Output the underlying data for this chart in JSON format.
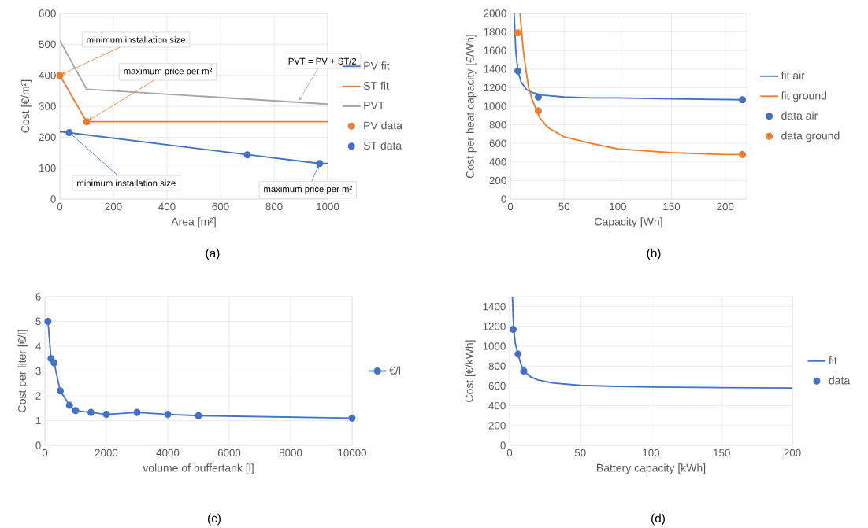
{
  "chart_data": [
    {
      "type": "line",
      "xlabel": "Area [m²]",
      "ylabel": "Cost [€/m²]",
      "xlim": [
        0,
        1000
      ],
      "ylim": [
        0,
        600
      ],
      "xticks": [
        0,
        200,
        400,
        600,
        800,
        1000
      ],
      "yticks": [
        0,
        100,
        200,
        300,
        400,
        500,
        600
      ],
      "grid": true,
      "legend": "right",
      "marker": "circle",
      "series": [
        {
          "name": "PV fit",
          "type": "line",
          "marker": "none",
          "color": "#4472c4",
          "x": [
            0,
            970,
            1000
          ],
          "values": [
            218,
            115,
            115
          ]
        },
        {
          "name": "ST fit",
          "type": "line",
          "marker": "none",
          "color": "#ed7d31",
          "x": [
            0,
            100,
            1000
          ],
          "values": [
            400,
            250,
            250
          ]
        },
        {
          "name": "PVT",
          "type": "line",
          "marker": "none",
          "color": "#a5a5a5",
          "x": [
            0,
            100,
            1000
          ],
          "values": [
            512,
            355,
            307
          ]
        },
        {
          "name": "PV data",
          "type": "scatter",
          "color": "#ed7d31",
          "x": [
            0,
            100
          ],
          "values": [
            400,
            250
          ]
        },
        {
          "name": "ST data",
          "type": "scatter",
          "color": "#4472c4",
          "x": [
            35,
            700,
            970
          ],
          "values": [
            215,
            143,
            115
          ]
        }
      ],
      "annotations": [
        {
          "text": "minimum installation size",
          "x": 0,
          "y": 400
        },
        {
          "text": "maximum price per m²",
          "x": 100,
          "y": 250
        },
        {
          "text": "PVT = PV + ST/2",
          "x": 890,
          "y": 313
        },
        {
          "text": "minimum installation size",
          "x": 35,
          "y": 215
        },
        {
          "text": "maximum price per m²",
          "x": 970,
          "y": 115
        },
        "(a)"
      ]
    },
    {
      "type": "line",
      "xlabel": "Capacity [Wh]",
      "ylabel": "Cost per heat capacity [€/Wh]",
      "xlim": [
        0,
        220
      ],
      "ylim": [
        0,
        2000
      ],
      "xticks": [
        0,
        50,
        100,
        150,
        200
      ],
      "yticks": [
        0,
        200,
        400,
        600,
        800,
        1000,
        1200,
        1400,
        1600,
        1800,
        2000
      ],
      "grid": true,
      "legend": "right",
      "marker": "circle",
      "series": [
        {
          "name": "fit air",
          "type": "line",
          "marker": "none",
          "color": "#4472c4",
          "x": [
            3.5,
            5,
            7,
            10,
            15,
            20,
            30,
            50,
            75,
            100,
            150,
            217
          ],
          "values": [
            2000,
            1600,
            1380,
            1260,
            1180,
            1150,
            1120,
            1100,
            1090,
            1090,
            1080,
            1070
          ]
        },
        {
          "name": "fit ground",
          "type": "line",
          "marker": "none",
          "color": "#ed7d31",
          "x": [
            9,
            12,
            15,
            17,
            20,
            27,
            35,
            50,
            75,
            100,
            125,
            150,
            200,
            217
          ],
          "values": [
            2000,
            1600,
            1350,
            1200,
            1080,
            880,
            770,
            670,
            600,
            540,
            520,
            500,
            480,
            480
          ]
        },
        {
          "name": "data air",
          "type": "scatter",
          "color": "#4472c4",
          "x": [
            7,
            26,
            216
          ],
          "values": [
            1380,
            1100,
            1070
          ]
        },
        {
          "name": "data ground",
          "type": "scatter",
          "color": "#ed7d31",
          "x": [
            7,
            26,
            216
          ],
          "values": [
            1790,
            950,
            480
          ]
        }
      ],
      "annotations": [
        "(b)"
      ]
    },
    {
      "type": "line",
      "xlabel": "volume of buffertank [l]",
      "ylabel": "Cost per liter [€/l]",
      "xlim": [
        0,
        10000
      ],
      "ylim": [
        0,
        6
      ],
      "xticks": [
        0,
        2000,
        4000,
        6000,
        8000,
        10000
      ],
      "yticks": [
        0,
        1,
        2,
        3,
        4,
        5,
        6
      ],
      "grid": true,
      "legend": "right",
      "marker": "circle",
      "series": [
        {
          "name": "€/l",
          "color": "#4472c4",
          "x": [
            100,
            200,
            300,
            500,
            800,
            1000,
            1500,
            2000,
            3000,
            4000,
            5000,
            10000
          ],
          "values": [
            5,
            3.5,
            3.33,
            2.2,
            1.62,
            1.4,
            1.33,
            1.25,
            1.33,
            1.25,
            1.2,
            1.1
          ]
        }
      ],
      "annotations": [
        "(c)"
      ]
    },
    {
      "type": "line",
      "xlabel": "Battery capacity [kWh]",
      "ylabel": "Cost [€/kWh]",
      "xlim": [
        0,
        200
      ],
      "ylim": [
        0,
        1500
      ],
      "xticks": [
        0,
        50,
        100,
        150,
        200
      ],
      "yticks": [
        0,
        200,
        400,
        600,
        800,
        1000,
        1200,
        1400
      ],
      "grid": true,
      "legend": "right",
      "marker": "circle",
      "series": [
        {
          "name": "fit",
          "type": "line",
          "marker": "none",
          "color": "#4472c4",
          "x": [
            2,
            2.5,
            3,
            4,
            6,
            8,
            10,
            15,
            20,
            30,
            50,
            75,
            100,
            150,
            200
          ],
          "values": [
            1500,
            1300,
            1170,
            1030,
            920,
            820,
            750,
            690,
            660,
            630,
            605,
            595,
            588,
            582,
            578
          ]
        },
        {
          "name": "data",
          "type": "scatter",
          "color": "#4472c4",
          "x": [
            2.5,
            6,
            10
          ],
          "values": [
            1170,
            920,
            750
          ]
        }
      ],
      "annotations": [
        "(d)"
      ]
    }
  ]
}
